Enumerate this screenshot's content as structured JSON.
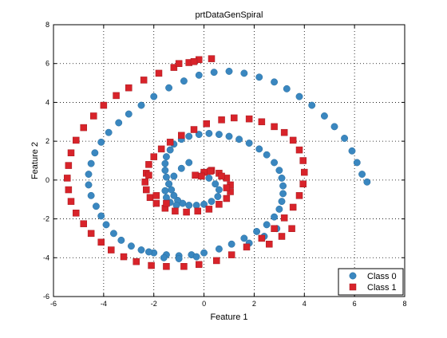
{
  "chart_data": {
    "type": "scatter",
    "title": "prtDataGenSpiral",
    "xlabel": "Feature 1",
    "ylabel": "Feature 2",
    "xlim": [
      -6,
      8
    ],
    "ylim": [
      -6,
      8
    ],
    "xticks": [
      "-6",
      "-4",
      "-2",
      "0",
      "2",
      "4",
      "6",
      "8"
    ],
    "yticks": [
      "-6",
      "-4",
      "-2",
      "0",
      "2",
      "4",
      "6",
      "8"
    ],
    "grid": "dotted",
    "legend_position": "bottom-right",
    "series": [
      {
        "name": "Class 0",
        "marker": "circle",
        "color": "#3a87c0",
        "x": [
          0.0,
          0.2,
          0.45,
          0.6,
          0.55,
          0.3,
          0.0,
          -0.3,
          -0.6,
          -0.85,
          -1.05,
          -1.2,
          -1.3,
          -1.4,
          -1.5,
          -1.55,
          -1.55,
          -1.5,
          -1.35,
          -1.2,
          -0.9,
          -0.6,
          -0.2,
          0.2,
          0.6,
          1.0,
          1.4,
          1.8,
          2.2,
          2.5,
          2.8,
          3.0,
          3.1,
          3.15,
          3.15,
          3.1,
          3.0,
          2.8,
          2.5,
          2.1,
          1.6,
          1.1,
          0.6,
          0.0,
          -0.5,
          -1.0,
          -1.5,
          -2.0,
          -2.5,
          -2.9,
          -3.3,
          -3.6,
          -3.9,
          -4.1,
          -4.3,
          -4.5,
          -4.6,
          -4.6,
          -4.5,
          -4.35,
          -4.1,
          -3.8,
          -3.4,
          -3.0,
          -2.5,
          -2.0,
          -1.4,
          -0.8,
          -0.2,
          0.4,
          1.0,
          1.6,
          2.2,
          2.8,
          3.3,
          3.8,
          4.3,
          4.8,
          5.2,
          5.6,
          5.9,
          6.1,
          6.3,
          6.5,
          -0.6,
          -0.9,
          -1.2,
          -1.4,
          -1.55,
          -1.5,
          -1.35,
          -1.1,
          1.8,
          2.4,
          2.9,
          -2.2,
          -1.6,
          -1.0,
          -0.3
        ],
        "y": [
          0.4,
          0.1,
          -0.2,
          -0.5,
          -0.85,
          -1.1,
          -1.25,
          -1.3,
          -1.3,
          -1.2,
          -1.05,
          -0.8,
          -0.5,
          -0.2,
          0.15,
          0.5,
          0.85,
          1.2,
          1.55,
          1.85,
          2.1,
          2.25,
          2.35,
          2.4,
          2.35,
          2.25,
          2.1,
          1.9,
          1.6,
          1.3,
          0.9,
          0.5,
          0.1,
          -0.3,
          -0.7,
          -1.1,
          -1.5,
          -1.9,
          -2.3,
          -2.65,
          -3.0,
          -3.3,
          -3.55,
          -3.75,
          -3.85,
          -3.9,
          -3.85,
          -3.75,
          -3.6,
          -3.4,
          -3.1,
          -2.75,
          -2.3,
          -1.85,
          -1.35,
          -0.8,
          -0.25,
          0.3,
          0.85,
          1.4,
          1.95,
          2.45,
          2.95,
          3.4,
          3.85,
          4.3,
          4.75,
          5.1,
          5.4,
          5.55,
          5.6,
          5.5,
          5.3,
          5.05,
          4.7,
          4.3,
          3.85,
          3.3,
          2.75,
          2.15,
          1.5,
          0.9,
          0.3,
          -0.1,
          0.9,
          0.6,
          0.2,
          -0.2,
          -0.55,
          -0.9,
          -1.15,
          -1.3,
          -3.25,
          -2.9,
          -2.5,
          -3.7,
          -4.0,
          -4.05,
          -3.95
        ]
      },
      {
        "name": "Class 1",
        "marker": "square",
        "color": "#d8232a",
        "x": [
          0.0,
          0.3,
          0.6,
          0.9,
          1.05,
          1.05,
          0.9,
          0.6,
          0.2,
          -0.25,
          -0.7,
          -1.15,
          -1.55,
          -1.9,
          -2.15,
          -2.3,
          -2.35,
          -2.3,
          -2.2,
          -2.0,
          -1.7,
          -1.35,
          -0.9,
          -0.4,
          0.1,
          0.7,
          1.2,
          1.8,
          2.3,
          2.8,
          3.2,
          3.55,
          3.8,
          3.95,
          4.0,
          3.95,
          3.8,
          3.55,
          3.2,
          2.8,
          2.3,
          1.7,
          1.1,
          0.5,
          -0.2,
          -0.8,
          -1.5,
          -2.1,
          -2.7,
          -3.2,
          -3.7,
          -4.1,
          -4.5,
          -4.8,
          -5.1,
          -5.3,
          -5.4,
          -5.45,
          -5.4,
          -5.3,
          -5.1,
          -4.8,
          -4.4,
          -4.0,
          -3.5,
          -3.0,
          -2.4,
          -1.8,
          -1.2,
          -0.6,
          -0.2,
          0.3,
          -0.35,
          -0.1,
          0.25,
          0.7,
          0.9,
          -2.2,
          -1.9,
          -1.5,
          2.6,
          3.1,
          3.5,
          -0.4,
          -1.0
        ],
        "y": [
          0.4,
          0.5,
          0.35,
          0.1,
          -0.25,
          -0.6,
          -0.95,
          -1.25,
          -1.5,
          -1.6,
          -1.65,
          -1.6,
          -1.45,
          -1.2,
          -0.9,
          -0.5,
          -0.1,
          0.35,
          0.8,
          1.2,
          1.6,
          1.95,
          2.3,
          2.6,
          2.9,
          3.1,
          3.2,
          3.15,
          3.0,
          2.75,
          2.45,
          2.05,
          1.55,
          1.0,
          0.4,
          -0.2,
          -0.8,
          -1.4,
          -1.95,
          -2.5,
          -3.0,
          -3.45,
          -3.85,
          -4.15,
          -4.35,
          -4.45,
          -4.45,
          -4.4,
          -4.2,
          -3.95,
          -3.6,
          -3.2,
          -2.75,
          -2.25,
          -1.7,
          -1.1,
          -0.5,
          0.1,
          0.75,
          1.4,
          2.05,
          2.7,
          3.3,
          3.85,
          4.35,
          4.75,
          5.15,
          5.5,
          5.8,
          6.05,
          6.2,
          6.25,
          0.25,
          0.2,
          0.45,
          0.2,
          -0.4,
          0.25,
          -0.8,
          -1.2,
          -3.3,
          -2.9,
          -2.5,
          6.1,
          6.0
        ]
      }
    ]
  },
  "legend": {
    "items": [
      "Class 0",
      "Class 1"
    ]
  }
}
